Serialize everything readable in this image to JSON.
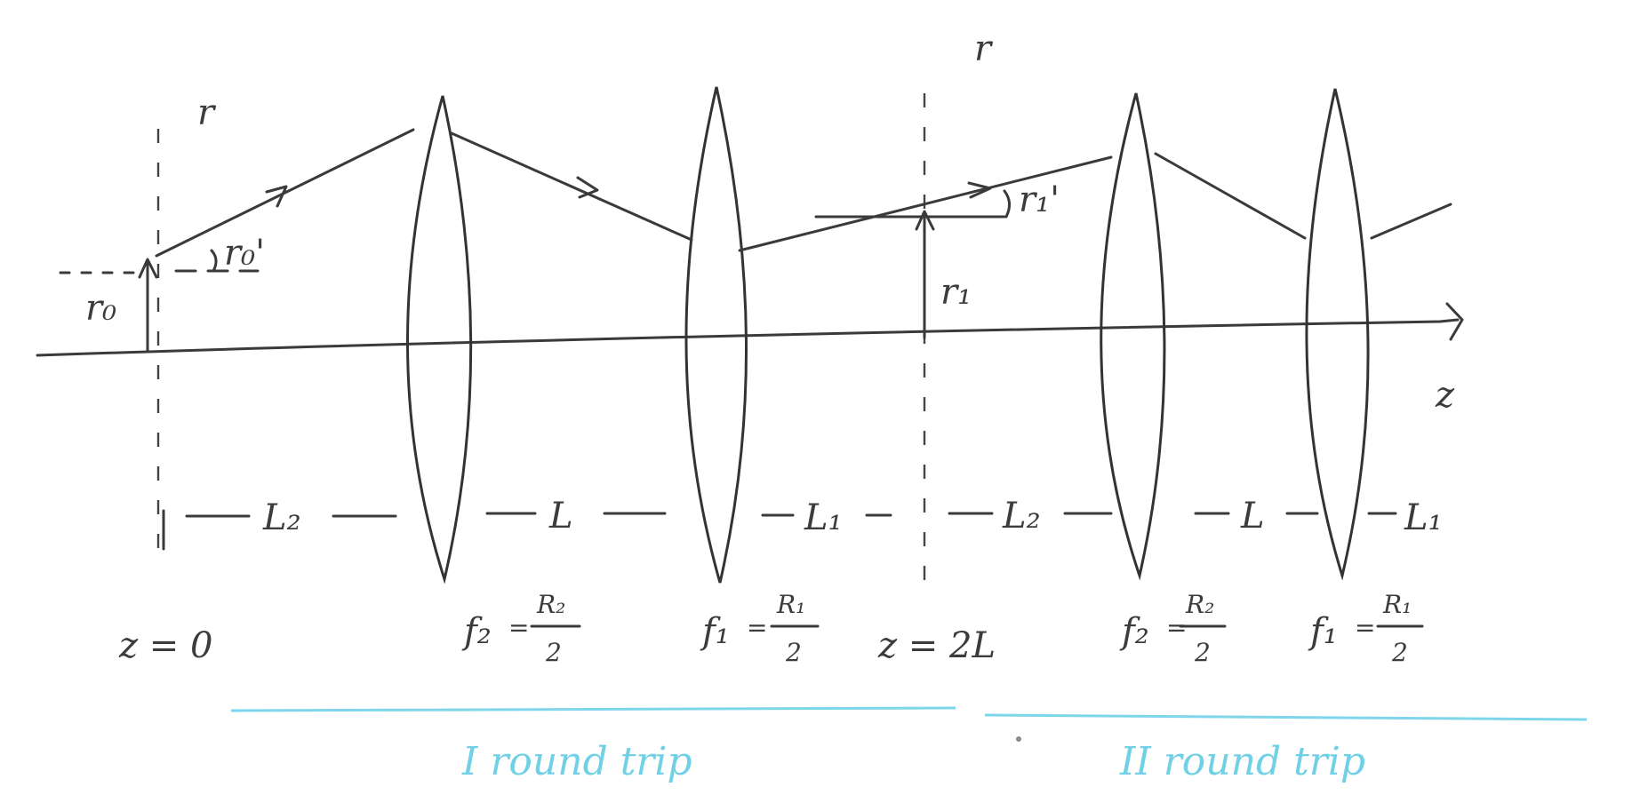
{
  "axes": {
    "vertical_label": "r",
    "horizontal_label": "z"
  },
  "planes": [
    {
      "label": "z = 0",
      "axis_label": "r"
    },
    {
      "label": "z = 2L",
      "axis_label": "r"
    }
  ],
  "ray_labels": {
    "height_0": "r₀",
    "angle_0": "r₀'",
    "height_1": "r₁",
    "angle_1": "r₁'"
  },
  "distances": [
    "L₂",
    "L",
    "L₁",
    "L₂",
    "L",
    "L₁"
  ],
  "lenses": [
    {
      "f": "f₂",
      "num": "R₂",
      "den": "2"
    },
    {
      "f": "f₁",
      "num": "R₁",
      "den": "2"
    },
    {
      "f": "f₂",
      "num": "R₂",
      "den": "2"
    },
    {
      "f": "f₁",
      "num": "R₁",
      "den": "2"
    }
  ],
  "round_trips": [
    "I round trip",
    "II round trip"
  ],
  "colors": {
    "ink": "#3a3a3a",
    "annotation": "#7fd6ea"
  }
}
